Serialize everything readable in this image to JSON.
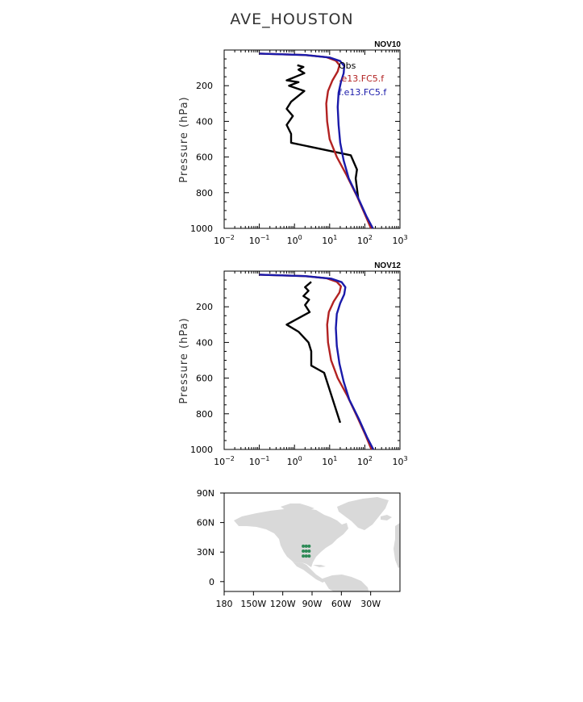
{
  "page_title": "AVE_HOUSTON",
  "colors": {
    "obs": "#000000",
    "e13": "#b22222",
    "f": "#1a1aaa",
    "land": "#d9d9d9",
    "sites": "#2e8b57"
  },
  "legend": [
    {
      "label": "Obs",
      "color": "#000000"
    },
    {
      "label": ".e13.FC5.f",
      "color": "#b22222"
    },
    {
      "label": "f.e13.FC5.f",
      "color": "#1a1aaa"
    }
  ],
  "chart_data": [
    {
      "type": "line",
      "panel": "NOV10",
      "ylabel": "Pressure (hPa)",
      "xscale": "log",
      "xlim": [
        0.01,
        1000
      ],
      "ylim": [
        1000,
        0
      ],
      "xticks": [
        {
          "value": 0.01,
          "base": "10",
          "exp": "−2"
        },
        {
          "value": 0.1,
          "base": "10",
          "exp": "−1"
        },
        {
          "value": 1,
          "base": "10",
          "exp": "0"
        },
        {
          "value": 10,
          "base": "10",
          "exp": "1"
        },
        {
          "value": 100,
          "base": "10",
          "exp": "2"
        },
        {
          "value": 1000,
          "base": "10",
          "exp": "3"
        }
      ],
      "yticks": [
        200,
        400,
        600,
        800,
        1000
      ],
      "series": [
        {
          "name": "Obs",
          "color": "#000000",
          "x": [
            1.2,
            1.8,
            1.3,
            1.9,
            0.6,
            1.3,
            0.7,
            1.9,
            0.8,
            0.6,
            0.9,
            0.6,
            0.8,
            0.8,
            40,
            60,
            55,
            65
          ],
          "y": [
            85,
            95,
            110,
            130,
            170,
            180,
            200,
            230,
            290,
            330,
            370,
            420,
            470,
            520,
            590,
            670,
            720,
            830
          ]
        },
        {
          "name": ".e13.FC5.f",
          "color": "#b22222",
          "x": [
            0.1,
            2,
            8,
            15,
            19,
            17,
            12,
            9,
            8,
            8.5,
            10,
            16,
            30,
            60,
            100,
            150
          ],
          "y": [
            20,
            28,
            40,
            60,
            85,
            120,
            170,
            230,
            300,
            400,
            500,
            600,
            700,
            820,
            920,
            1000
          ]
        },
        {
          "name": "f.e13.FC5.f",
          "color": "#1a1aaa",
          "x": [
            0.1,
            2,
            10,
            20,
            26,
            25,
            21,
            18,
            17,
            18,
            20,
            25,
            35,
            65,
            110,
            170
          ],
          "y": [
            20,
            28,
            42,
            62,
            90,
            130,
            180,
            240,
            320,
            420,
            520,
            620,
            720,
            830,
            930,
            1000
          ]
        }
      ]
    },
    {
      "type": "line",
      "panel": "NOV12",
      "ylabel": "Pressure (hPa)",
      "xscale": "log",
      "xlim": [
        0.01,
        1000
      ],
      "ylim": [
        1000,
        0
      ],
      "xticks": [
        {
          "value": 0.01,
          "base": "10",
          "exp": "−2"
        },
        {
          "value": 0.1,
          "base": "10",
          "exp": "−1"
        },
        {
          "value": 1,
          "base": "10",
          "exp": "0"
        },
        {
          "value": 10,
          "base": "10",
          "exp": "1"
        },
        {
          "value": 100,
          "base": "10",
          "exp": "2"
        },
        {
          "value": 1000,
          "base": "10",
          "exp": "3"
        }
      ],
      "yticks": [
        200,
        400,
        600,
        800,
        1000
      ],
      "series": [
        {
          "name": "Obs",
          "color": "#000000",
          "x": [
            3,
            2,
            2.5,
            1.8,
            2.6,
            2,
            2.7,
            0.6,
            1.3,
            2.5,
            3,
            3,
            7,
            20
          ],
          "y": [
            60,
            90,
            110,
            140,
            160,
            190,
            230,
            300,
            340,
            400,
            450,
            530,
            570,
            850
          ]
        },
        {
          "name": ".e13.FC5.f",
          "color": "#b22222",
          "x": [
            0.1,
            2,
            8,
            16,
            21,
            19,
            13,
            9.5,
            8.5,
            9,
            11,
            17,
            32,
            62,
            105,
            155
          ],
          "y": [
            20,
            28,
            40,
            60,
            85,
            120,
            170,
            230,
            300,
            400,
            500,
            600,
            700,
            820,
            920,
            1000
          ]
        },
        {
          "name": "f.e13.FC5.f",
          "color": "#1a1aaa",
          "x": [
            0.1,
            2,
            11,
            22,
            28,
            26,
            20,
            16,
            15,
            16,
            19,
            25,
            36,
            68,
            115,
            175
          ],
          "y": [
            20,
            28,
            42,
            62,
            90,
            130,
            180,
            240,
            320,
            420,
            520,
            620,
            720,
            830,
            930,
            1000
          ]
        }
      ]
    },
    {
      "type": "map",
      "lon_ticks": [
        "180",
        "150W",
        "120W",
        "90W",
        "60W",
        "30W"
      ],
      "lat_ticks": [
        "90N",
        "60N",
        "30N",
        "0"
      ],
      "lon_range": [
        -180,
        0
      ],
      "lat_range": [
        -10,
        90
      ],
      "sites": [
        {
          "lon": -99,
          "lat": 36
        },
        {
          "lon": -96,
          "lat": 36
        },
        {
          "lon": -93,
          "lat": 36
        },
        {
          "lon": -99,
          "lat": 31
        },
        {
          "lon": -96,
          "lat": 31
        },
        {
          "lon": -93,
          "lat": 31
        },
        {
          "lon": -99,
          "lat": 26
        },
        {
          "lon": -96,
          "lat": 26
        },
        {
          "lon": -93,
          "lat": 26
        }
      ]
    }
  ]
}
